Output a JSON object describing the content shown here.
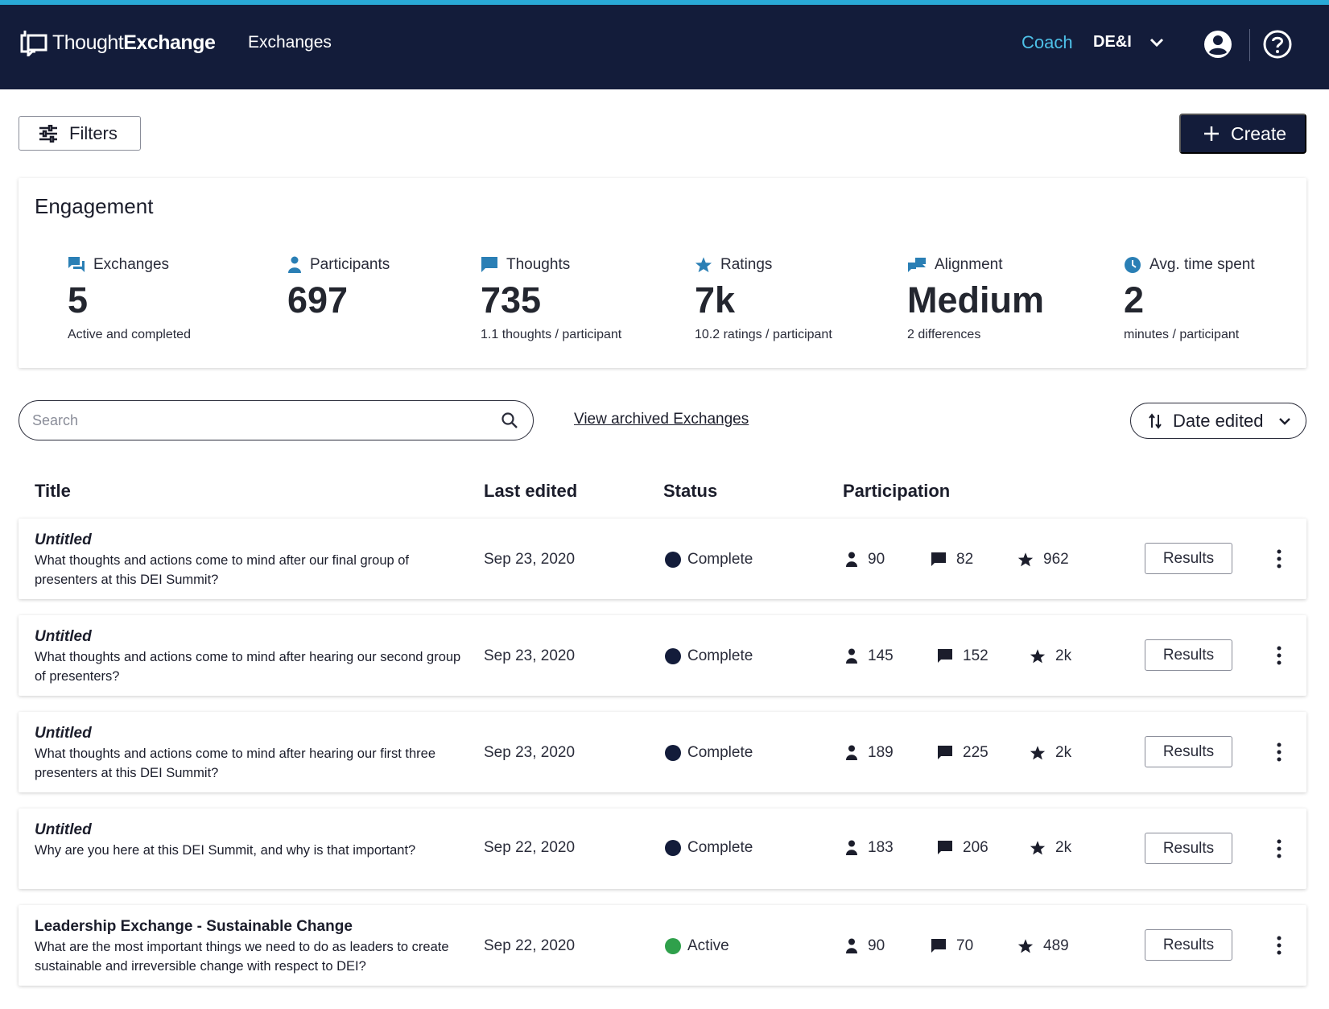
{
  "header": {
    "logo_light": "Thought",
    "logo_bold": "Exchange",
    "nav_link": "Exchanges",
    "coach": "Coach",
    "org": "DE&I"
  },
  "toolbar": {
    "filters_label": "Filters",
    "create_label": "Create"
  },
  "engagement": {
    "title": "Engagement",
    "metrics": [
      {
        "label": "Exchanges",
        "value": "5",
        "sub": "Active and completed",
        "icon": "chat-bubbles-icon"
      },
      {
        "label": "Participants",
        "value": "697",
        "sub": "",
        "icon": "person-icon"
      },
      {
        "label": "Thoughts",
        "value": "735",
        "sub": "1.1 thoughts / participant",
        "icon": "speech-bubble-icon"
      },
      {
        "label": "Ratings",
        "value": "7k",
        "sub": "10.2 ratings / participant",
        "icon": "star-icon"
      },
      {
        "label": "Alignment",
        "value": "Medium",
        "sub": "2 differences",
        "icon": "alignment-icon"
      },
      {
        "label": "Avg. time spent",
        "value": "2",
        "sub": "minutes / participant",
        "icon": "clock-icon"
      }
    ]
  },
  "search": {
    "placeholder": "Search",
    "value": ""
  },
  "archived_link": "View archived Exchanges",
  "sort": {
    "label": "Date edited"
  },
  "table": {
    "columns": [
      "Title",
      "Last edited",
      "Status",
      "Participation"
    ],
    "results_label": "Results",
    "rows": [
      {
        "title": "Untitled",
        "desc": "What thoughts and actions come to mind after our final group of presenters at this DEI Summit?",
        "date": "Sep 23, 2020",
        "status": "Complete",
        "participants": "90",
        "thoughts": "82",
        "ratings": "962"
      },
      {
        "title": "Untitled",
        "desc": "What thoughts and actions come to mind after hearing our second group of presenters?",
        "date": "Sep 23, 2020",
        "status": "Complete",
        "participants": "145",
        "thoughts": "152",
        "ratings": "2k"
      },
      {
        "title": "Untitled",
        "desc": "What thoughts and actions come to mind after hearing our first three presenters at this DEI Summit?",
        "date": "Sep 23, 2020",
        "status": "Complete",
        "participants": "189",
        "thoughts": "225",
        "ratings": "2k"
      },
      {
        "title": "Untitled",
        "desc": "Why are you here at this DEI Summit, and why is that important?",
        "date": "Sep 22, 2020",
        "status": "Complete",
        "participants": "183",
        "thoughts": "206",
        "ratings": "2k"
      },
      {
        "title": "Leadership Exchange - Sustainable Change",
        "desc": "What are the most important things we need to do as leaders to create sustainable and irreversible change with respect to DEI?",
        "date": "Sep 22, 2020",
        "status": "Active",
        "participants": "90",
        "thoughts": "70",
        "ratings": "489"
      }
    ]
  },
  "colors": {
    "navbar": "#131c3a",
    "accent_stripe": "#29a9d6",
    "coach_link": "#4ec1e8",
    "metric_icon": "#2a7fb5",
    "status_complete": "#131c3a",
    "status_active": "#2fa04b"
  }
}
